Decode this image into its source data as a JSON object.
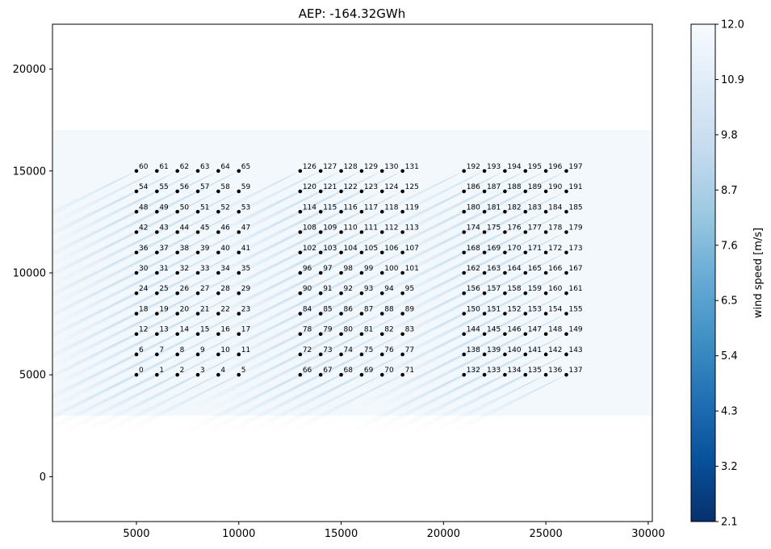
{
  "chart_data": {
    "type": "scatter",
    "title": "AEP: -164.32GWh",
    "xlabel": "",
    "ylabel": "",
    "xlim": [
      900,
      30200
    ],
    "ylim": [
      -2200,
      22200
    ],
    "x_ticks": [
      5000,
      10000,
      15000,
      20000,
      25000,
      30000
    ],
    "y_ticks": [
      0,
      5000,
      10000,
      15000,
      20000
    ],
    "wind_field_extent": {
      "x": [
        900,
        30200
      ],
      "y": [
        3000,
        17000
      ]
    },
    "turbine_grid": {
      "blocks_x_start": [
        5000,
        13000,
        21000
      ],
      "columns_per_block": 6,
      "x_spacing": 1000,
      "y_start": 5000,
      "rows": 11,
      "y_spacing": 1000,
      "numbering": "block-major, row-major from bottom-left"
    },
    "colorbar": {
      "label": "wind speed [m/s]",
      "colormap": "Blues_r",
      "vmin": 2.1,
      "vmax": 12.0,
      "ticks": [
        "2.1",
        "3.2",
        "4.3",
        "5.4",
        "6.5",
        "7.6",
        "8.7",
        "9.8",
        "10.9",
        "12.0"
      ]
    },
    "grid": false,
    "marker_color": "#000000"
  }
}
